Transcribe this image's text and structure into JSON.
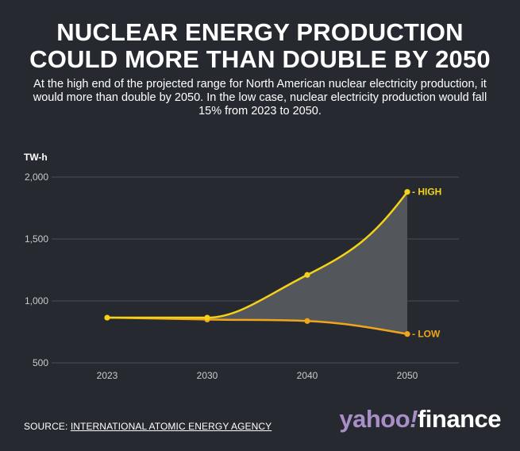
{
  "header": {
    "title_line1": "NUCLEAR ENERGY PRODUCTION",
    "title_line2": "COULD MORE THAN DOUBLE BY 2050",
    "subtitle": "At the high end of the projected range for North American nuclear electricity production, it would more than double by 2050. In the low case, nuclear electricity production would fall 15% from 2023 to 2050."
  },
  "footer": {
    "source_prefix": "SOURCE: ",
    "source_name": "INTERNATIONAL ATOMIC ENERGY AGENCY",
    "logo_yahoo": "yahoo",
    "logo_bang": "!",
    "logo_finance": "finance"
  },
  "colors": {
    "background": "#262a30",
    "high": "#f5d218",
    "low": "#f0a51c",
    "band": "#55595e",
    "grid": "#4a4e55",
    "logo_purple": "#a98ec8"
  },
  "chart_data": {
    "type": "line",
    "title": "NUCLEAR ENERGY PRODUCTION COULD MORE THAN DOUBLE BY 2050",
    "ylabel": "TW-h",
    "xlabel": "",
    "x": [
      2023,
      2030,
      2040,
      2050
    ],
    "x_tick_labels": [
      "2023",
      "2030",
      "2040",
      "2050"
    ],
    "ylim": [
      500,
      2000
    ],
    "y_ticks": [
      500,
      1000,
      1500,
      2000
    ],
    "y_tick_labels": [
      "500",
      "1,000",
      "1,500",
      "2,000"
    ],
    "series": [
      {
        "name": "HIGH",
        "label": "- HIGH",
        "values": [
          865,
          865,
          1210,
          1880
        ]
      },
      {
        "name": "LOW",
        "label": "- LOW",
        "values": [
          865,
          850,
          838,
          733
        ]
      }
    ],
    "shaded_range_between_series": true
  }
}
